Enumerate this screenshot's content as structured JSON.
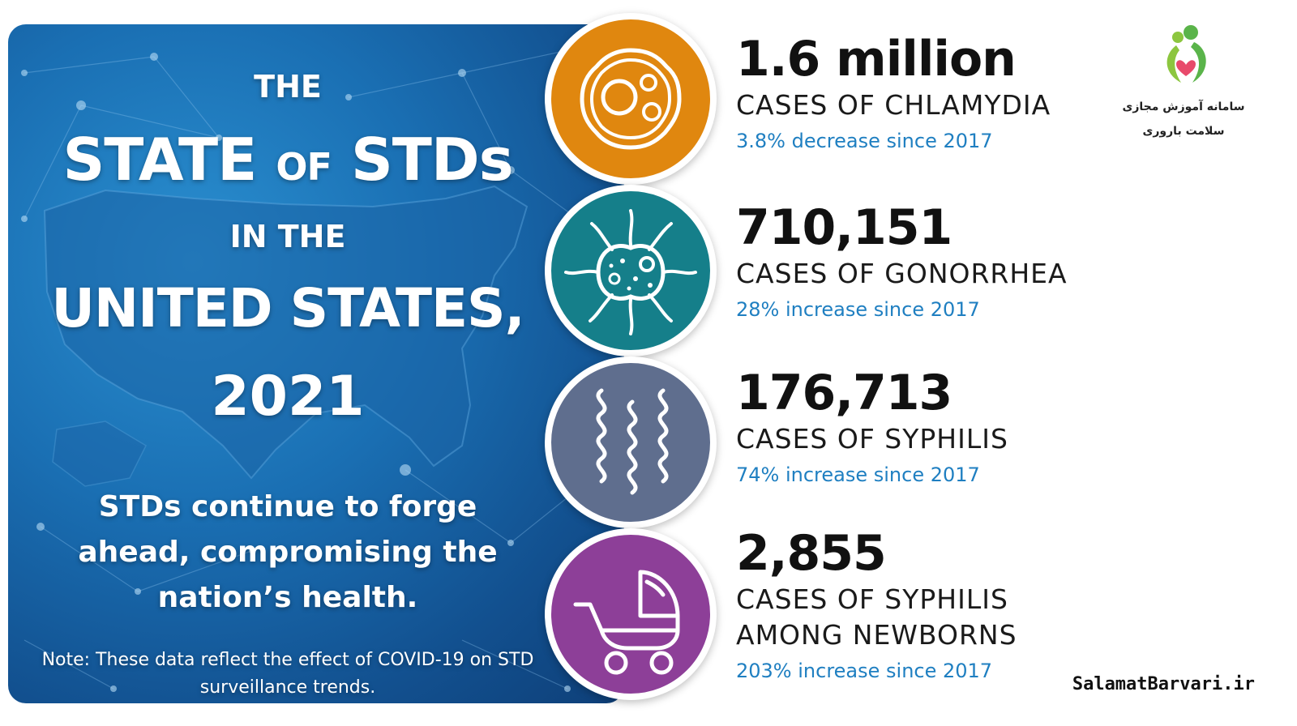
{
  "headline": {
    "the": "THE",
    "state_a": "STATE",
    "state_of": "OF",
    "state_b": "STDs",
    "in_the": "IN THE",
    "united_states": "UNITED STATES,",
    "year": "2021"
  },
  "tagline": "STDs continue to forge ahead, compromising the nation’s health.",
  "note": "Note: These data reflect the effect of COVID-19 on STD surveillance trends.",
  "stats": [
    {
      "number": "1.6 million",
      "label": "CASES OF CHLAMYDIA",
      "change": "3.8% decrease since 2017",
      "color": "#e0870f",
      "icon": "chlamydia-cell-icon"
    },
    {
      "number": "710,151",
      "label": "CASES OF GONORRHEA",
      "change": "28% increase since 2017",
      "color": "#157f8a",
      "icon": "gonorrhea-bacteria-icon"
    },
    {
      "number": "176,713",
      "label": "CASES OF SYPHILIS",
      "change": "74% increase since 2017",
      "color": "#5f6e8e",
      "icon": "syphilis-spirochete-icon"
    },
    {
      "number": "2,855",
      "label_line1": "CASES OF SYPHILIS",
      "label_line2": "AMONG NEWBORNS",
      "change": "203% increase since 2017",
      "color": "#8d3f98",
      "icon": "baby-stroller-icon"
    }
  ],
  "brand": {
    "fa_line1": "سامانه آموزش مجازی",
    "fa_line2": "سلامت باروری",
    "site": "SalamatBarvari.ir"
  }
}
